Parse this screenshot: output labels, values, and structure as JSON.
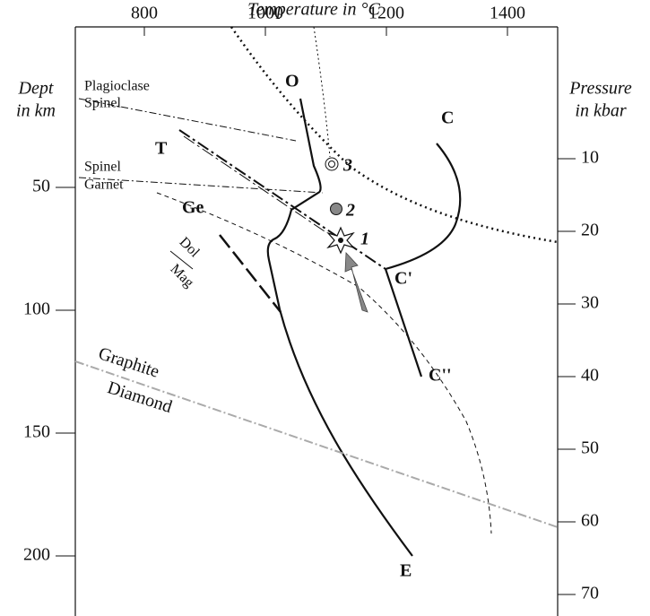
{
  "axes": {
    "top": {
      "title": "Temperature in °C",
      "ticks": [
        800,
        1000,
        1200,
        1400
      ]
    },
    "left": {
      "title": [
        "Dept",
        "in km"
      ],
      "ticks": [
        50,
        100,
        150,
        200
      ]
    },
    "right": {
      "title": [
        "Pressure",
        "in kbar"
      ],
      "ticks": [
        10,
        20,
        30,
        40,
        50,
        60,
        70
      ]
    }
  },
  "labels": {
    "plagioclase": "Plagioclase",
    "spinel_1": "Spinel",
    "spinel_2": "Spinel",
    "garnet": "Garnet",
    "t": "T",
    "ge": "Ge",
    "dol": "Dol",
    "mag": "Mag",
    "graphite": "Graphite",
    "diamond": "Diamond",
    "o": "O",
    "c": "C",
    "c1": "C'",
    "c2": "C''",
    "e": "E",
    "p1": "1",
    "p2": "2",
    "p3": "3"
  }
}
